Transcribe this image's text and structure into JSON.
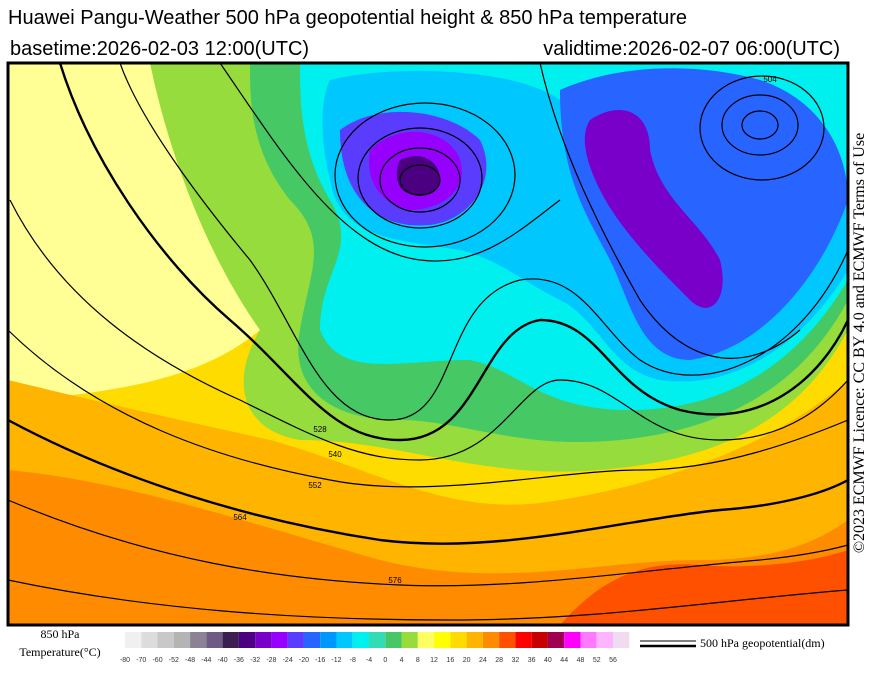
{
  "header": {
    "title": "Huawei Pangu-Weather 500 hPa geopotential height & 850 hPa temperature",
    "basetime": "basetime:2026-02-03 12:00(UTC)",
    "validtime": "validtime:2026-02-07 06:00(UTC)"
  },
  "side_note": "©2023 ECMWF Licence: CC BY 4.0 and ECMWF Terms of Use",
  "map": {
    "contour_labels": [
      "504",
      "528",
      "540",
      "552",
      "564",
      "576"
    ]
  },
  "colorbar": {
    "title_line1": "850 hPa",
    "title_line2": "Temperature(°C)",
    "ticks": [
      -80,
      -70,
      -60,
      -52,
      -48,
      -44,
      -40,
      -36,
      -32,
      -28,
      -24,
      -20,
      -16,
      -12,
      -8,
      -4,
      0,
      4,
      8,
      12,
      16,
      20,
      24,
      28,
      32,
      36,
      40,
      44,
      48,
      52,
      56
    ],
    "colors": [
      "#f0f0f0",
      "#dcdcdc",
      "#c8c8c8",
      "#b4b4b4",
      "#8c8296",
      "#6e5a82",
      "#3c1e50",
      "#4b0082",
      "#7800c8",
      "#9600ff",
      "#5a3cff",
      "#2864ff",
      "#0096ff",
      "#00c8ff",
      "#00f0f0",
      "#32dcb4",
      "#46c864",
      "#96dc3c",
      "#ffff64",
      "#ffff00",
      "#ffdc00",
      "#ffb400",
      "#ff8c00",
      "#ff5000",
      "#ff0000",
      "#c80000",
      "#a00050",
      "#ff00ff",
      "#ff78ff",
      "#ffb4ff",
      "#f0dcf0"
    ]
  },
  "legend": {
    "label": "500 hPa geopotential(dm)"
  }
}
